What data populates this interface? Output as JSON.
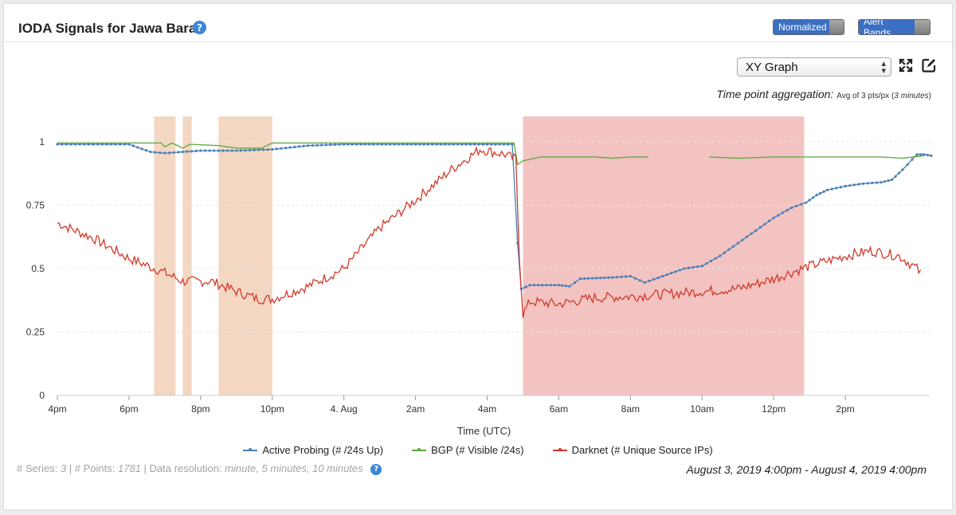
{
  "header": {
    "title": "IODA Signals for Jawa Barat",
    "help_icon": "question-circle-icon",
    "toggles": {
      "normalized": "Normalized",
      "alert_bands": "Alert Bands"
    }
  },
  "controls": {
    "graph_type": "XY Graph",
    "expand_icon": "expand-icon",
    "edit_icon": "edit-external-icon"
  },
  "aggregation": {
    "label": "Time point aggregation:",
    "detail_prefix": "Avg of 3 pts/px (",
    "detail_minutes": "3 minutes",
    "detail_suffix": ")"
  },
  "legend": [
    {
      "name": "Active Probing (# /24s Up)",
      "color": "#4a7fb5"
    },
    {
      "name": "BGP (# Visible /24s)",
      "color": "#5aa83c"
    },
    {
      "name": "Darknet (# Unique Source IPs)",
      "color": "#d23a2c"
    }
  ],
  "footer": {
    "series_label": "# Series:",
    "series_value": "3",
    "points_label": "# Points:",
    "points_value": "1781",
    "resolution_label": "Data resolution:",
    "resolution_value": "minute, 5 minutes, 10 minutes",
    "date_range": "August 3, 2019 4:00pm - August 4, 2019 4:00pm"
  },
  "chart_data": {
    "type": "line",
    "xlabel": "Time (UTC)",
    "x_ticks": [
      "4pm",
      "6pm",
      "8pm",
      "10pm",
      "4. Aug",
      "2am",
      "4am",
      "6am",
      "8am",
      "10am",
      "12pm",
      "2pm"
    ],
    "x_range_hours": [
      0,
      24
    ],
    "ylim": [
      0,
      1.1
    ],
    "y_ticks": [
      0,
      0.25,
      0.5,
      0.75,
      1
    ],
    "y_tick_labels": [
      "0",
      "0.25",
      "0.5",
      "0.75",
      "1"
    ],
    "alert_bands": [
      {
        "level": "warning",
        "color": "#f3d7c2",
        "start_h": 2.7,
        "end_h": 3.3
      },
      {
        "level": "warning",
        "color": "#f3d7c2",
        "start_h": 3.5,
        "end_h": 3.75
      },
      {
        "level": "warning",
        "color": "#f3d7c2",
        "start_h": 4.5,
        "end_h": 6.0
      },
      {
        "level": "critical",
        "color": "#f2c3c0",
        "start_h": 13.0,
        "end_h": 20.85
      }
    ],
    "series": [
      {
        "name": "Active Probing (# /24s Up)",
        "color": "#4a7fb5",
        "markers": true,
        "points": [
          [
            0,
            0.99
          ],
          [
            1,
            0.99
          ],
          [
            2,
            0.99
          ],
          [
            2.6,
            0.96
          ],
          [
            3,
            0.955
          ],
          [
            4,
            0.965
          ],
          [
            5,
            0.965
          ],
          [
            6,
            0.97
          ],
          [
            7,
            0.985
          ],
          [
            8,
            0.99
          ],
          [
            10,
            0.99
          ],
          [
            12,
            0.99
          ],
          [
            12.7,
            0.99
          ],
          [
            12.85,
            0.6
          ],
          [
            12.95,
            0.42
          ],
          [
            13.2,
            0.435
          ],
          [
            14,
            0.435
          ],
          [
            14.3,
            0.43
          ],
          [
            14.6,
            0.46
          ],
          [
            15.5,
            0.465
          ],
          [
            16,
            0.47
          ],
          [
            16.4,
            0.445
          ],
          [
            16.9,
            0.47
          ],
          [
            17.5,
            0.5
          ],
          [
            18,
            0.51
          ],
          [
            18.5,
            0.55
          ],
          [
            19,
            0.6
          ],
          [
            19.5,
            0.65
          ],
          [
            20,
            0.7
          ],
          [
            20.5,
            0.74
          ],
          [
            20.9,
            0.76
          ],
          [
            21.2,
            0.79
          ],
          [
            21.5,
            0.81
          ],
          [
            22,
            0.825
          ],
          [
            22.5,
            0.835
          ],
          [
            23,
            0.84
          ],
          [
            23.3,
            0.85
          ],
          [
            23.6,
            0.89
          ],
          [
            24,
            0.95
          ],
          [
            24.2,
            0.95
          ],
          [
            24.4,
            0.945
          ]
        ]
      },
      {
        "name": "BGP (# Visible /24s)",
        "color": "#5aa83c",
        "markers": false,
        "segments": [
          [
            [
              0,
              0.995
            ],
            [
              2,
              0.995
            ],
            [
              2.9,
              0.995
            ],
            [
              3.0,
              0.98
            ],
            [
              3.2,
              0.995
            ],
            [
              3.5,
              0.975
            ],
            [
              3.7,
              0.99
            ],
            [
              4.5,
              0.985
            ],
            [
              5,
              0.975
            ],
            [
              5.7,
              0.975
            ],
            [
              6,
              0.995
            ],
            [
              8,
              0.995
            ],
            [
              10,
              0.995
            ],
            [
              12,
              0.995
            ],
            [
              12.75,
              0.995
            ],
            [
              12.85,
              0.91
            ],
            [
              13.0,
              0.925
            ],
            [
              13.5,
              0.94
            ],
            [
              14,
              0.94
            ],
            [
              15,
              0.94
            ],
            [
              15.5,
              0.935
            ],
            [
              16,
              0.94
            ],
            [
              16.5,
              0.94
            ]
          ],
          [
            [
              18.2,
              0.94
            ],
            [
              19,
              0.935
            ],
            [
              20,
              0.94
            ],
            [
              21,
              0.94
            ],
            [
              22,
              0.94
            ],
            [
              23,
              0.94
            ],
            [
              23.6,
              0.935
            ],
            [
              24.2,
              0.945
            ]
          ]
        ]
      },
      {
        "name": "Darknet (# Unique Source IPs)",
        "color": "#d23a2c",
        "markers": false,
        "noise": 0.02,
        "points": [
          [
            0,
            0.68
          ],
          [
            1,
            0.62
          ],
          [
            2,
            0.54
          ],
          [
            2.9,
            0.49
          ],
          [
            3.5,
            0.45
          ],
          [
            4.3,
            0.45
          ],
          [
            5,
            0.41
          ],
          [
            5.6,
            0.38
          ],
          [
            6,
            0.38
          ],
          [
            7,
            0.43
          ],
          [
            8,
            0.5
          ],
          [
            9,
            0.66
          ],
          [
            10,
            0.77
          ],
          [
            11,
            0.89
          ],
          [
            11.8,
            0.97
          ],
          [
            12.5,
            0.95
          ],
          [
            12.8,
            0.93
          ],
          [
            12.9,
            0.55
          ],
          [
            13.0,
            0.32
          ],
          [
            13.2,
            0.37
          ],
          [
            14,
            0.36
          ],
          [
            15,
            0.385
          ],
          [
            16,
            0.39
          ],
          [
            17,
            0.4
          ],
          [
            18,
            0.41
          ],
          [
            19,
            0.42
          ],
          [
            20,
            0.46
          ],
          [
            21,
            0.51
          ],
          [
            22,
            0.55
          ],
          [
            22.7,
            0.57
          ],
          [
            23.5,
            0.55
          ],
          [
            24,
            0.5
          ],
          [
            24.1,
            0.48
          ]
        ]
      }
    ]
  }
}
